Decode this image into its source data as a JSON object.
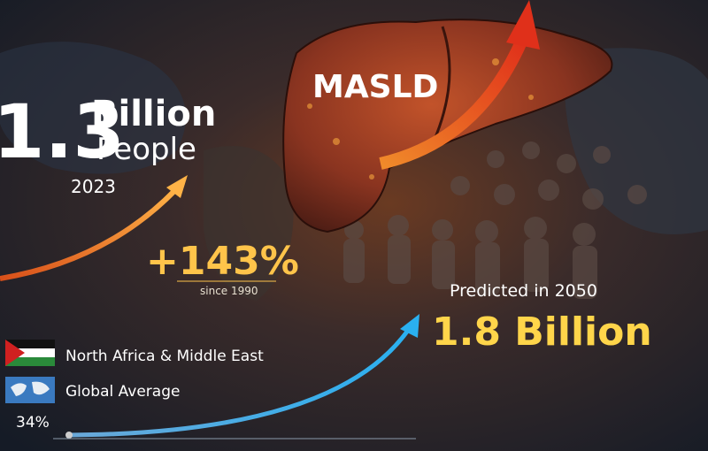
{
  "headline": {
    "value": "1.3",
    "unit": "Billion",
    "noun": "People",
    "year": "2023"
  },
  "disease": "MASLD",
  "growth": {
    "change": "+143%",
    "since": "since 1990"
  },
  "prediction": {
    "label": "Predicted in 2050",
    "value": "1.8 Billion"
  },
  "legend": [
    {
      "label": "North Africa & Middle East"
    },
    {
      "label": "Global Average"
    }
  ],
  "footnote": "34%"
}
